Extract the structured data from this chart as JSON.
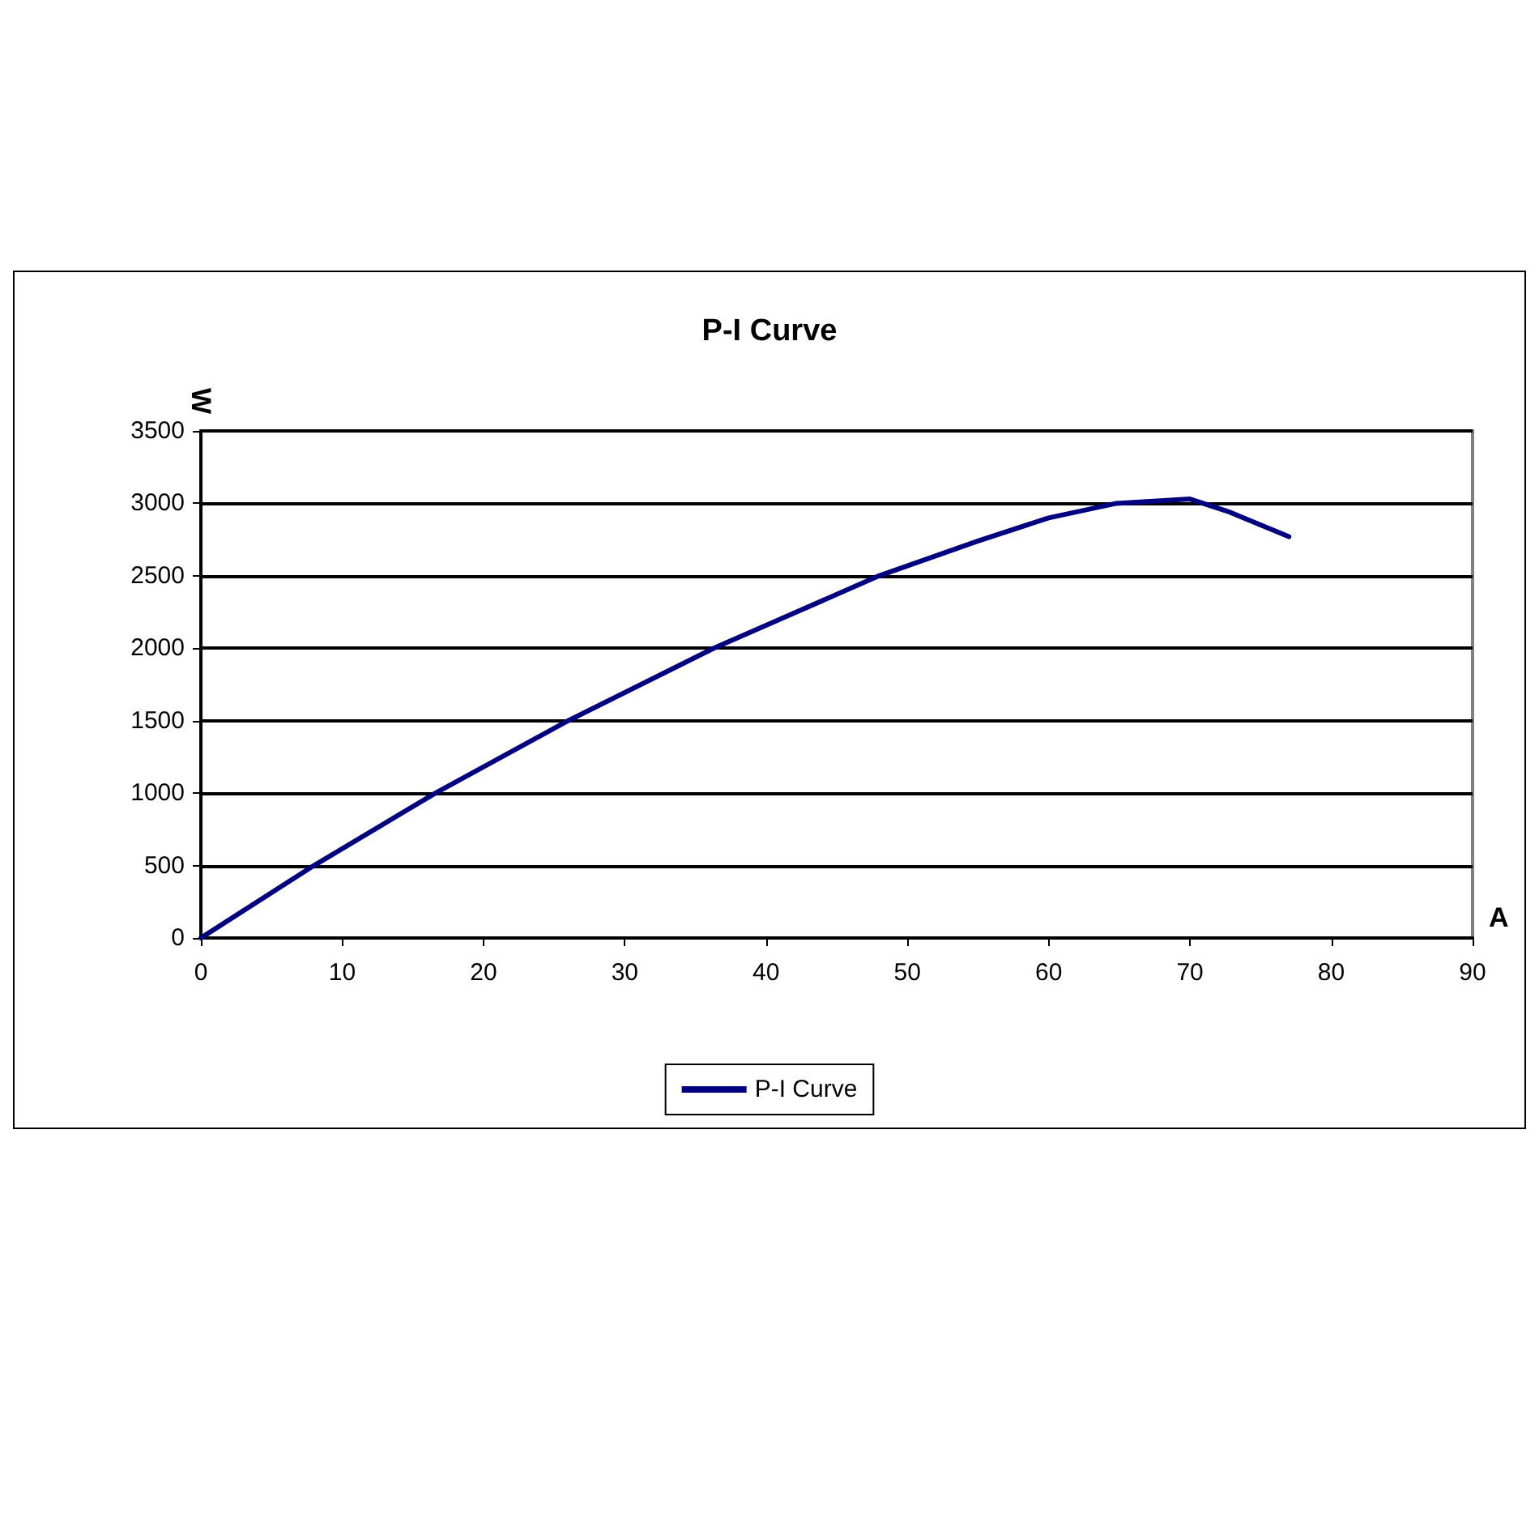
{
  "chart_data": {
    "type": "line",
    "title": "P-I Curve",
    "xlabel": "A",
    "ylabel": "W",
    "x": [
      0,
      8,
      16.6,
      26,
      36.3,
      48,
      55,
      60,
      64.8,
      70,
      72.8,
      77
    ],
    "series": [
      {
        "name": "P-I Curve",
        "color": "#000080",
        "values": [
          0,
          500,
          1000,
          1500,
          2000,
          2500,
          2740,
          2900,
          3000,
          3030,
          2940,
          2770
        ]
      }
    ],
    "xlim": [
      0,
      90
    ],
    "xticks": [
      0,
      10,
      20,
      30,
      40,
      50,
      60,
      70,
      80,
      90
    ],
    "ylim": [
      0,
      3500
    ],
    "yticks": [
      0,
      500,
      1000,
      1500,
      2000,
      2500,
      3000,
      3500
    ],
    "grid": "y",
    "legend": "bottom",
    "marker": "none",
    "line_style": "solid"
  }
}
